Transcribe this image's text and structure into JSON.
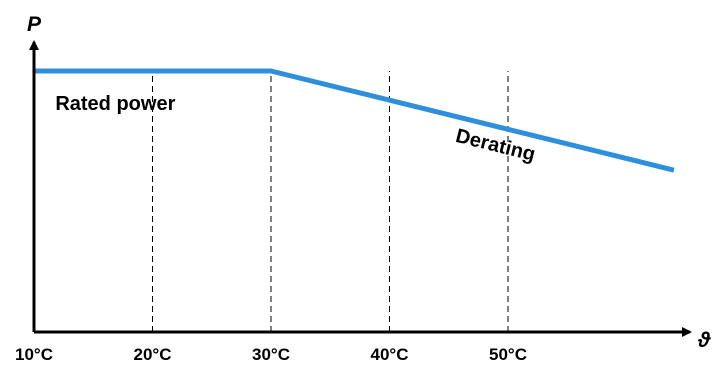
{
  "chart_data": {
    "type": "line",
    "title": "",
    "xlabel": "ϑ",
    "ylabel": "P",
    "x_ticks": [
      "10°C",
      "20°C",
      "30°C",
      "40°C",
      "50°C"
    ],
    "xlim": [
      10,
      65
    ],
    "ylim": [
      0,
      100
    ],
    "grid": "dashed vertical lines at 20°C, 30°C, 40°C, 50°C",
    "series": [
      {
        "x": [
          10,
          30,
          64
        ],
        "y": [
          100,
          100,
          62
        ],
        "color": "#2e8fdc"
      }
    ],
    "annotations": [
      {
        "text": "Rated power",
        "x": 11.8,
        "y": 85
      },
      {
        "text": "Derating",
        "x": 45.5,
        "y": 73,
        "rotation": 14
      }
    ]
  }
}
